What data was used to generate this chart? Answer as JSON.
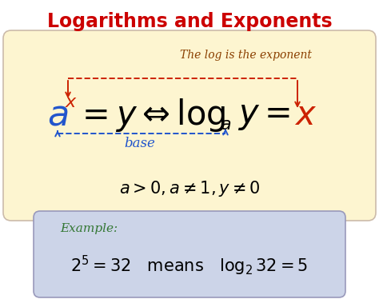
{
  "title": "Logarithms and Exponents",
  "title_color": "#cc0000",
  "bg_color": "#ffffff",
  "outer_border_color": "#9988bb",
  "main_box_color": "#fdf5d0",
  "main_box_edge": "#ccbbaa",
  "example_box_color": "#ccd4e8",
  "example_box_edge": "#9999bb",
  "annotation_top": "The log is the exponent",
  "annotation_top_color": "#8B4000",
  "annotation_bottom": "base",
  "annotation_bottom_color": "#2255cc",
  "example_label": "Example:",
  "example_label_color": "#337733",
  "arrow_red": "#cc2200",
  "arrow_blue": "#2255cc"
}
